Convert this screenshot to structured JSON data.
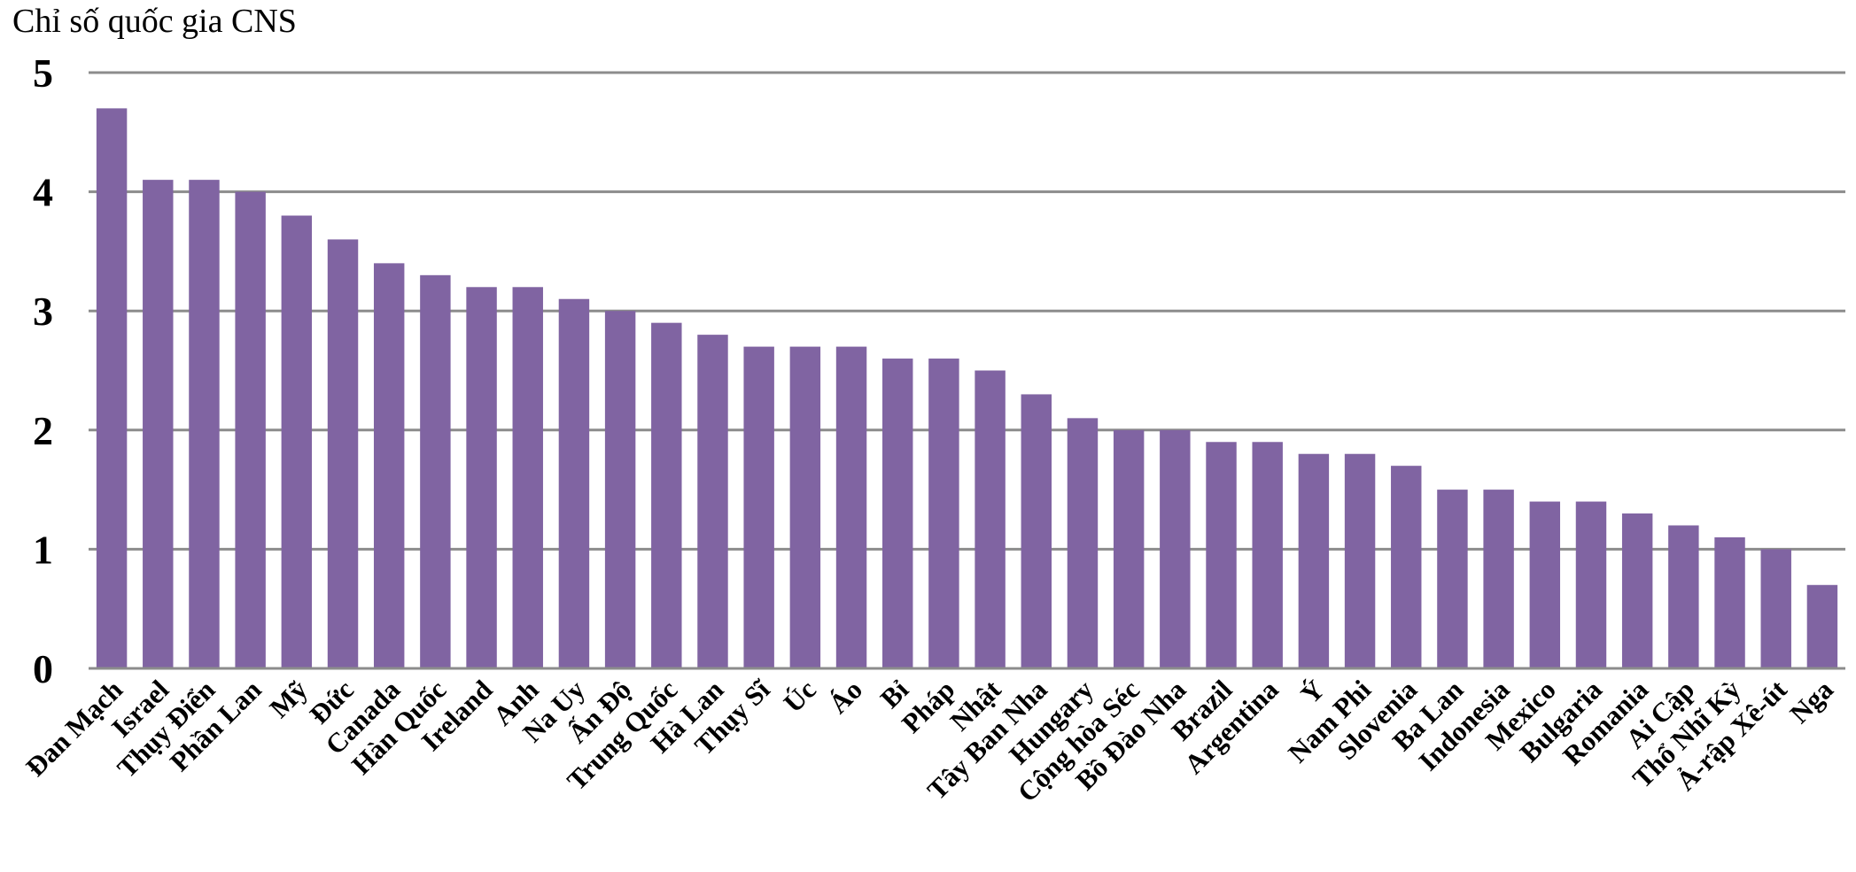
{
  "chart_data": {
    "type": "bar",
    "ylabel": "Chỉ số quốc gia CNS",
    "ylim": [
      0,
      5
    ],
    "yticks": [
      0,
      1,
      2,
      3,
      4,
      5
    ],
    "grid": true,
    "legend": "none",
    "bar_color": "#8064a2",
    "categories": [
      "Đan Mạch",
      "Israel",
      "Thụy Điển",
      "Phần Lan",
      "Mỹ",
      "Đức",
      "Canada",
      "Hàn Quốc",
      "Ireland",
      "Anh",
      "Na Uy",
      "Ấn Độ",
      "Trung Quốc",
      "Hà Lan",
      "Thụy Sĩ",
      "Úc",
      "Áo",
      "Bỉ",
      "Pháp",
      "Nhật",
      "Tây Ban Nha",
      "Hungary",
      "Cộng hòa Séc",
      "Bồ Đào Nha",
      "Brazil",
      "Argentina",
      "Ý",
      "Nam Phi",
      "Slovenia",
      "Ba Lan",
      "Indonesia",
      "Mexico",
      "Bulgaria",
      "Romania",
      "Ai Cập",
      "Thổ Nhĩ Kỳ",
      "Ả-rập Xê-út",
      "Nga"
    ],
    "values": [
      4.7,
      4.1,
      4.1,
      4.0,
      3.8,
      3.6,
      3.4,
      3.3,
      3.2,
      3.2,
      3.1,
      3.0,
      2.9,
      2.8,
      2.7,
      2.7,
      2.7,
      2.6,
      2.6,
      2.5,
      2.3,
      2.1,
      2.0,
      2.0,
      1.9,
      1.9,
      1.8,
      1.8,
      1.7,
      1.5,
      1.5,
      1.4,
      1.4,
      1.3,
      1.2,
      1.1,
      1.0,
      0.7
    ]
  }
}
